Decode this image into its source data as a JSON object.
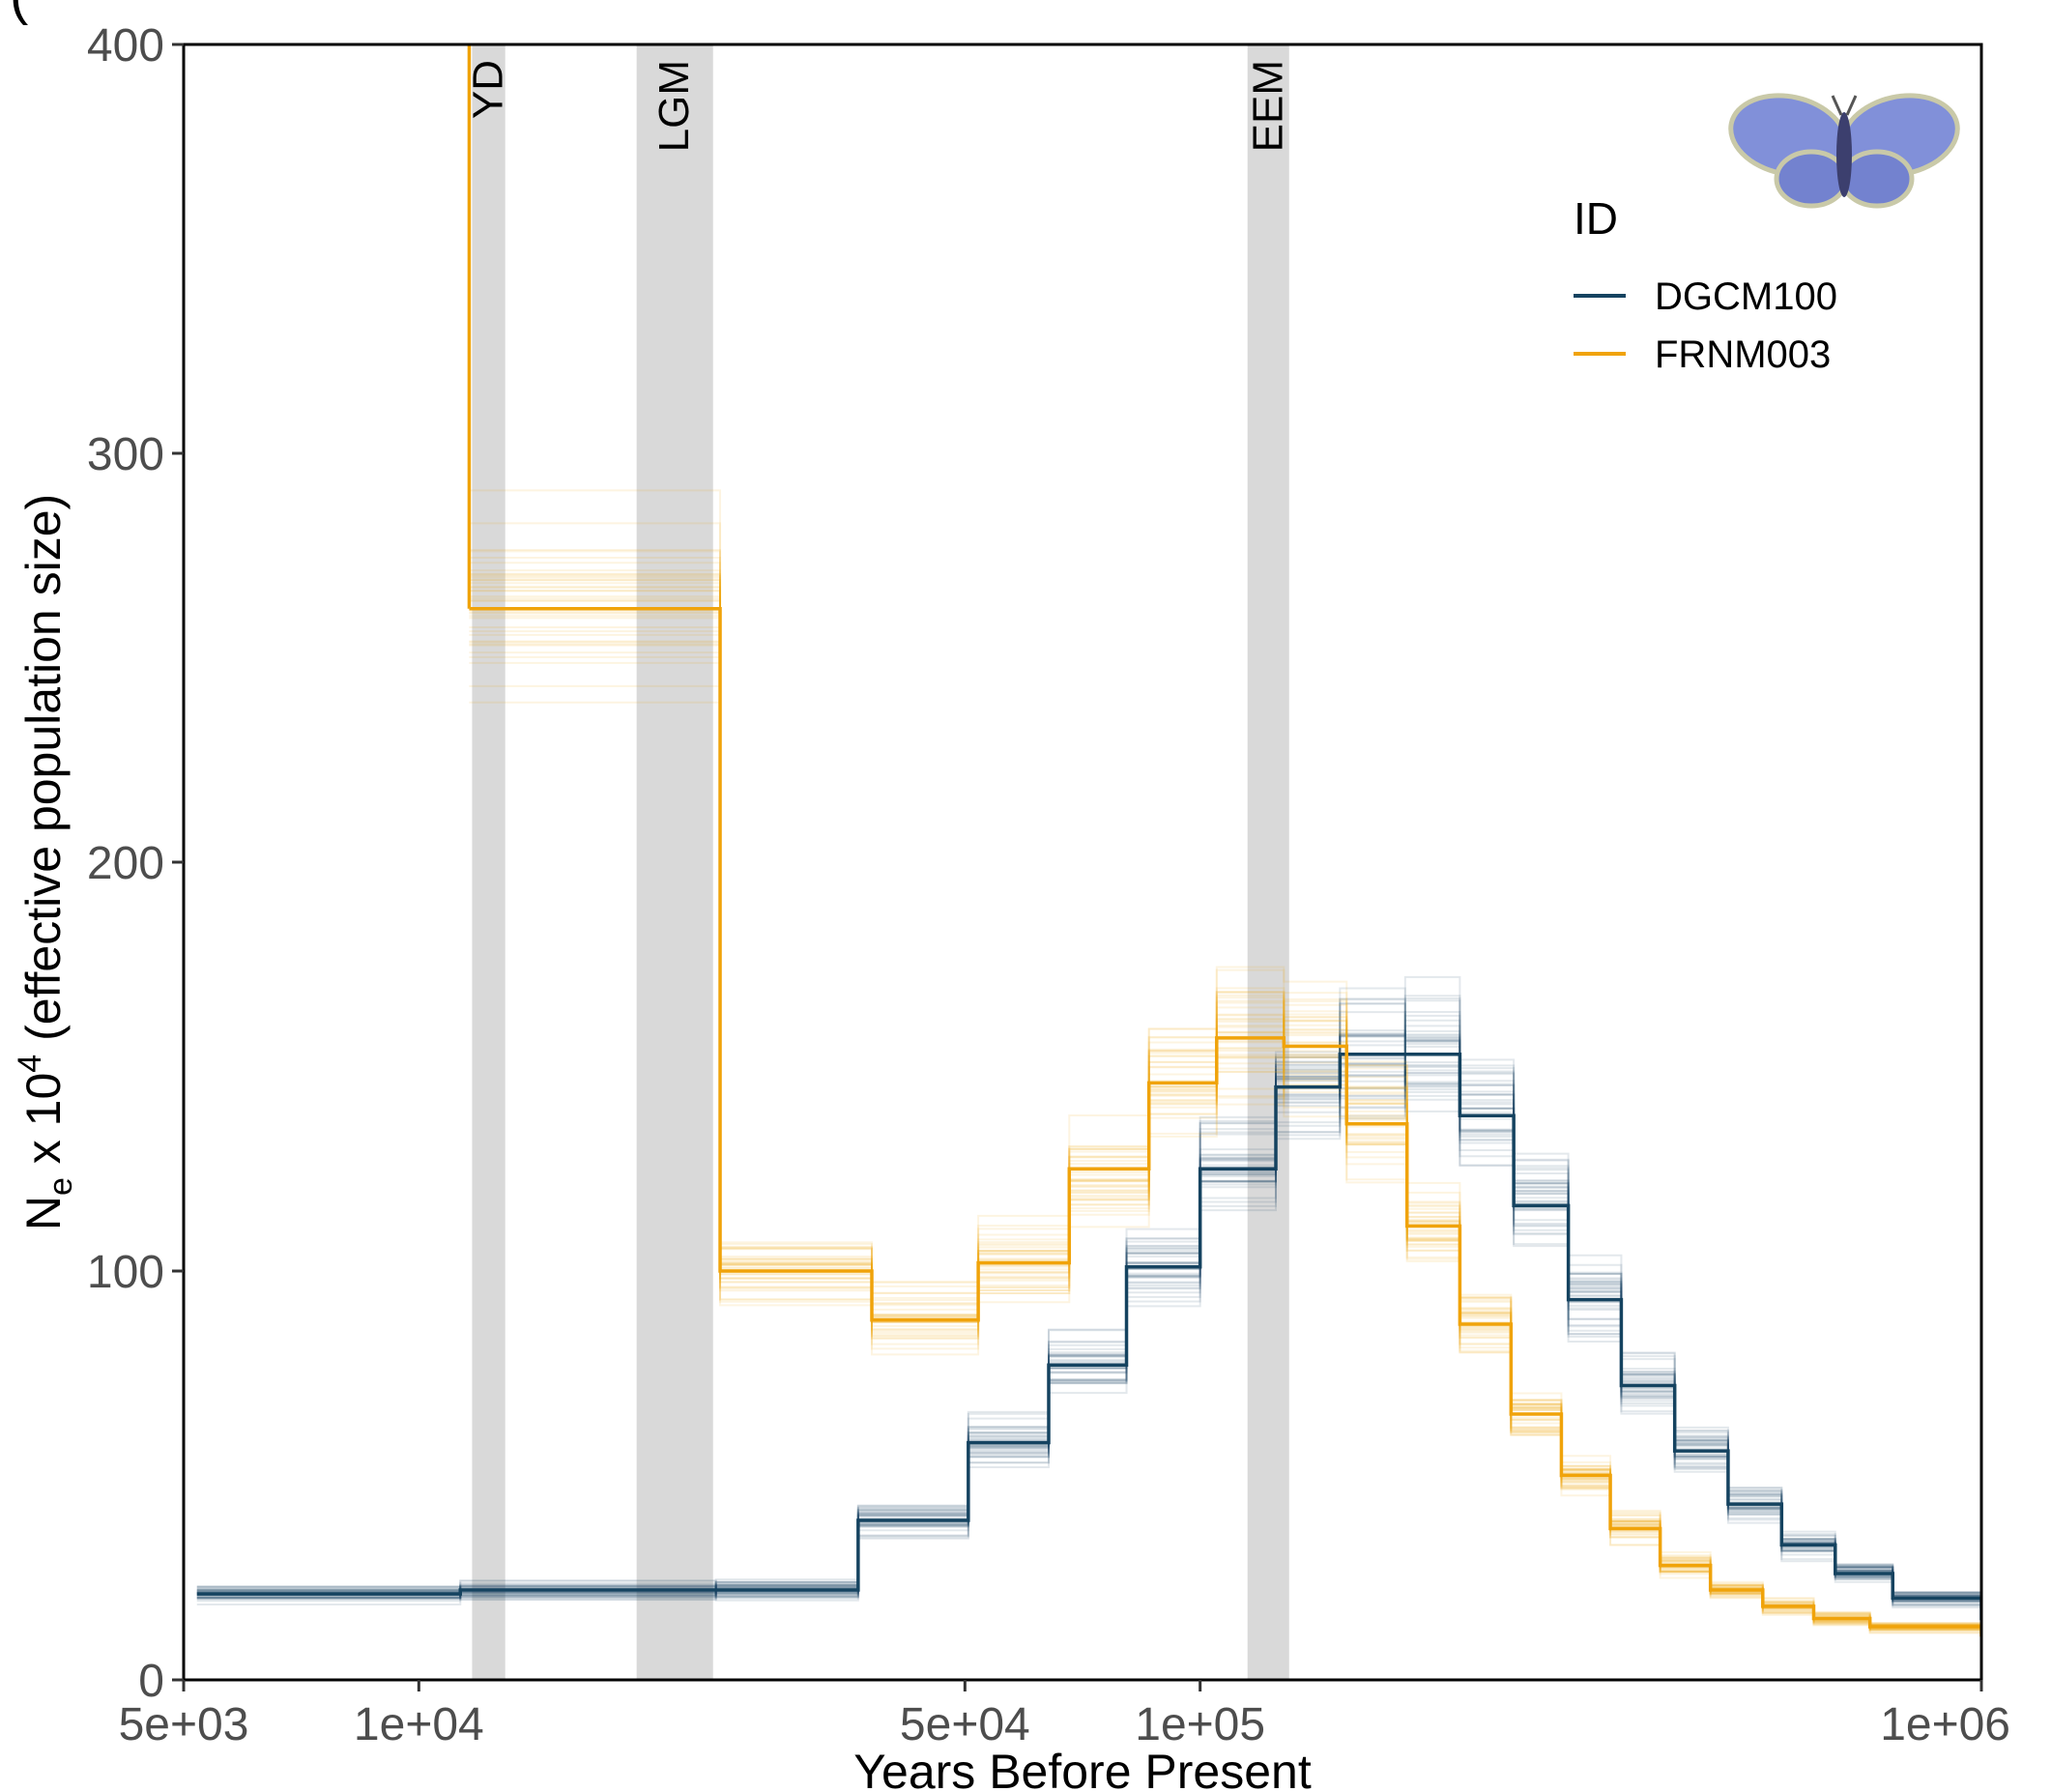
{
  "panel_tag": "(",
  "chart_data": {
    "type": "line",
    "step": true,
    "xlabel": "Years Before Present",
    "ylabel": {
      "main": "N",
      "sub": "e",
      "mid": " x 10",
      "sup": "4",
      "rest": " (effective population size)"
    },
    "x_scale": "log",
    "xlim": [
      5000,
      1000000
    ],
    "ylim": [
      0,
      400
    ],
    "x_ticks": [
      {
        "value": 5000,
        "label": "5e+03"
      },
      {
        "value": 10000,
        "label": "1e+04"
      },
      {
        "value": 50000,
        "label": "5e+04"
      },
      {
        "value": 100000,
        "label": "1e+05"
      },
      {
        "value": 1000000,
        "label": "1e+06"
      }
    ],
    "y_ticks": [
      {
        "value": 0,
        "label": "0"
      },
      {
        "value": 100,
        "label": "100"
      },
      {
        "value": 200,
        "label": "200"
      },
      {
        "value": 300,
        "label": "300"
      },
      {
        "value": 400,
        "label": "400"
      }
    ],
    "periods": [
      {
        "label": "YD",
        "from": 11700,
        "to": 12900
      },
      {
        "label": "LGM",
        "from": 19000,
        "to": 23800
      },
      {
        "label": "EEM",
        "from": 115000,
        "to": 130000
      }
    ],
    "period_color": "#d9d9d9",
    "legend": {
      "title": "ID",
      "position": "top-right"
    },
    "grid": false,
    "series": [
      {
        "name": "DGCM100",
        "color": "#154360",
        "bootstrap_spread": 0.1,
        "x": [
          5200,
          11300,
          24000,
          36500,
          50500,
          64000,
          80500,
          100000,
          125000,
          151000,
          183000,
          215000,
          252000,
          296000,
          346000,
          405000,
          474000,
          555000,
          650000,
          770000,
          1000000
        ],
        "y": [
          21,
          22,
          22,
          39,
          58,
          77,
          101,
          125,
          145,
          153,
          153,
          138,
          116,
          93,
          72,
          56,
          43,
          33,
          26,
          20,
          15
        ]
      },
      {
        "name": "FRNM003",
        "color": "#f0a30a",
        "bootstrap_spread": 0.1,
        "x": [
          11600,
          24300,
          38000,
          52000,
          68000,
          86000,
          105000,
          128000,
          154000,
          184000,
          215000,
          250000,
          290000,
          335000,
          388000,
          450000,
          525000,
          610000,
          720000,
          1000000
        ],
        "y": [
          262,
          100,
          88,
          102,
          125,
          146,
          157,
          155,
          136,
          111,
          87,
          65,
          50,
          37,
          28,
          22,
          18,
          15,
          13,
          11
        ]
      }
    ]
  }
}
